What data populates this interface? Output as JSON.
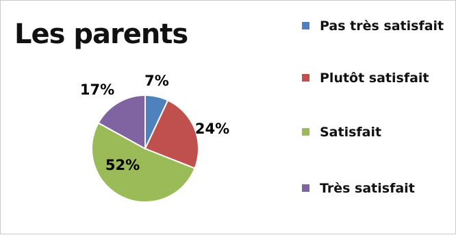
{
  "chart_data": {
    "type": "pie",
    "title": "Les parents",
    "categories": [
      "Pas très satisfait",
      "Plutôt satisfait",
      "Satisfait",
      "Très satisfait"
    ],
    "values": [
      7,
      24,
      52,
      17
    ],
    "labels": [
      "7%",
      "24%",
      "52%",
      "17%"
    ],
    "colors": [
      "#4f81bd",
      "#c0504d",
      "#9bbb59",
      "#8064a2"
    ],
    "legend_position": "right"
  }
}
